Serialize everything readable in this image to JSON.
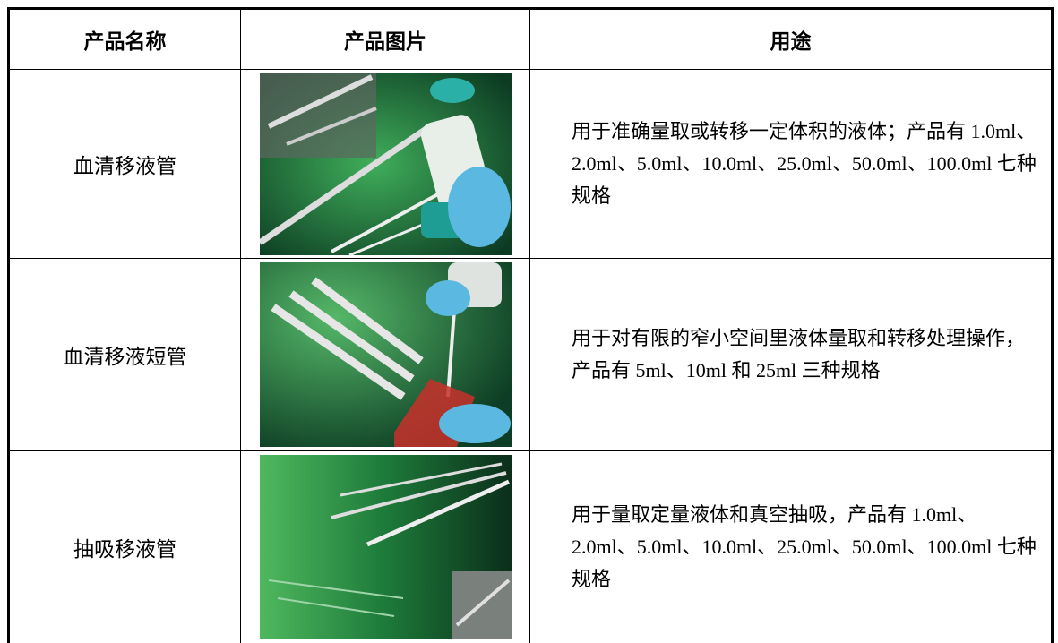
{
  "table": {
    "header": [
      "产品名称",
      "产品图片",
      "用途"
    ],
    "rows": [
      {
        "name": "血清移液管",
        "usage": "用于准确量取或转移一定体积的液体；产品有 1.0ml、2.0ml、5.0ml、10.0ml、25.0ml、50.0ml、100.0ml 七种规格"
      },
      {
        "name": "血清移液短管",
        "usage": "用于对有限的窄小空间里液体量取和转移处理操作，产品有 5ml、10ml 和 25ml 三种规格"
      },
      {
        "name": "抽吸移液管",
        "usage": "用于量取定量液体和真空抽吸，产品有 1.0ml、2.0ml、5.0ml、10.0ml、25.0ml、50.0ml、100.0ml 七种规格"
      }
    ]
  }
}
